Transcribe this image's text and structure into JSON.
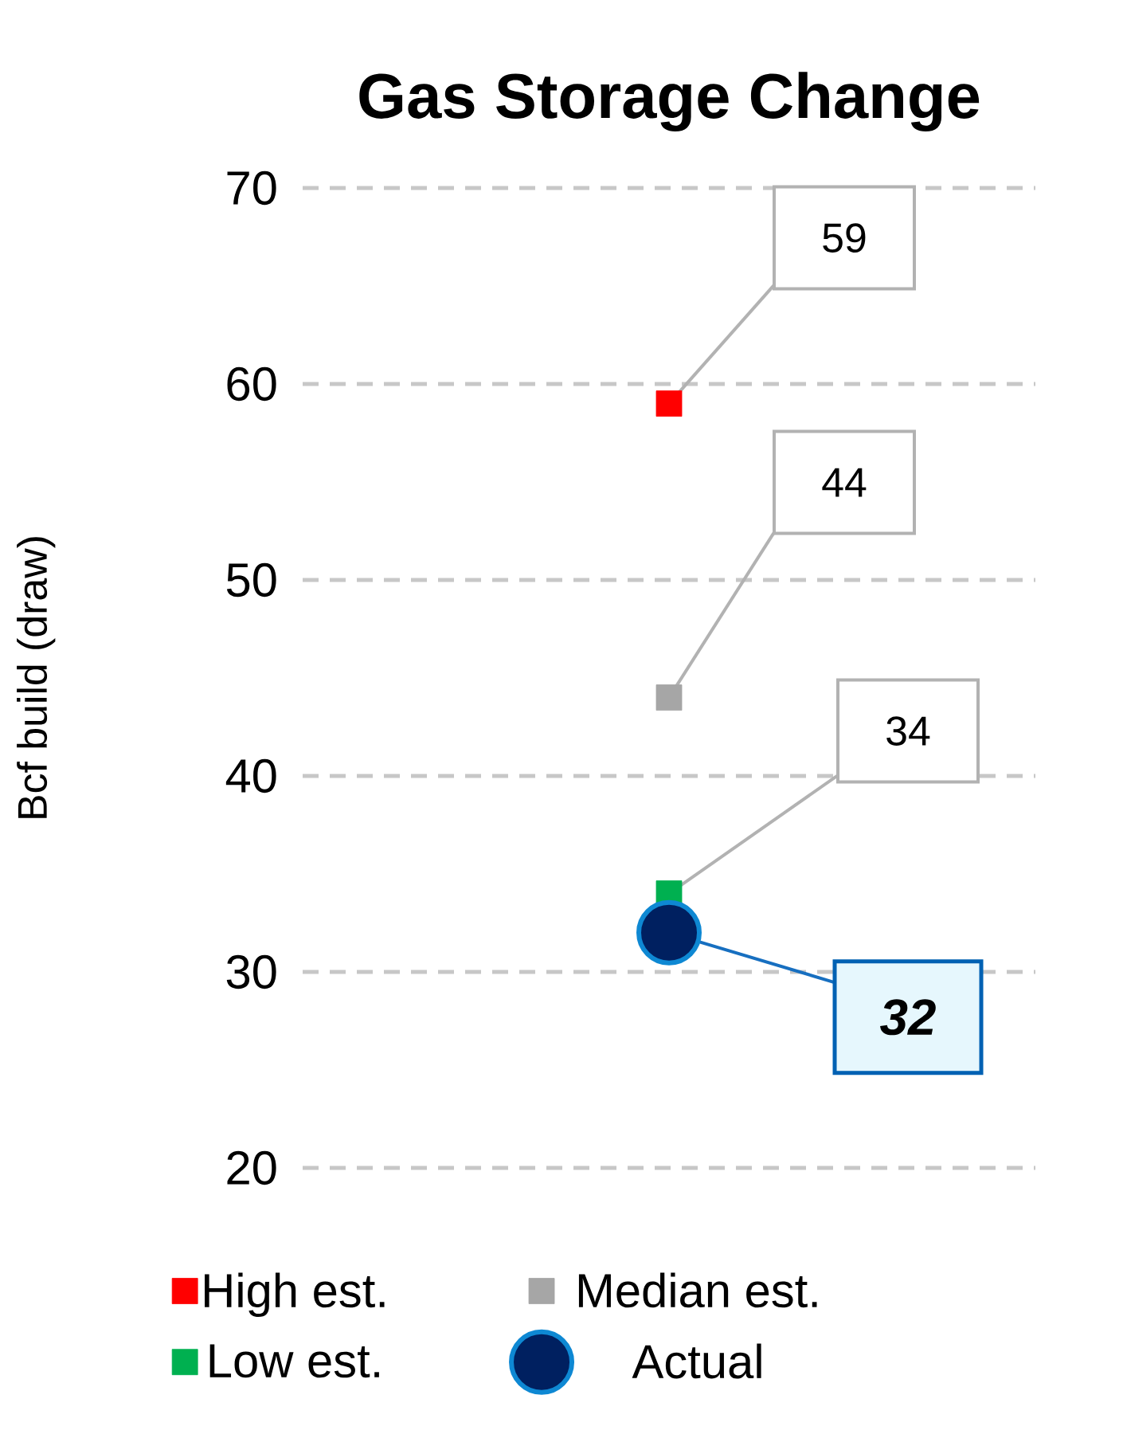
{
  "chart_data": {
    "type": "scatter",
    "title": "Gas Storage Change",
    "ylabel": "Bcf build (draw)",
    "categories": [
      null
    ],
    "ylim": [
      20,
      70
    ],
    "yticks": [
      20,
      30,
      40,
      50,
      60,
      70
    ],
    "grid": "y",
    "legend": "bottom",
    "tick_labels": "y",
    "series": [
      {
        "name": "High est.",
        "color": "#ff0000",
        "marker": "square",
        "values": [
          59
        ],
        "value_labels": [
          "59"
        ]
      },
      {
        "name": "Median est.",
        "color": "#a6a6a6",
        "marker": "square",
        "values": [
          44
        ],
        "value_labels": [
          "44"
        ]
      },
      {
        "name": "Low est.",
        "color": "#00b050",
        "marker": "square",
        "values": [
          34
        ],
        "value_labels": [
          "34"
        ]
      },
      {
        "name": "Actual",
        "color": "#002060",
        "marker": "circle",
        "values": [
          32
        ],
        "value_labels": [
          "32"
        ]
      }
    ]
  }
}
